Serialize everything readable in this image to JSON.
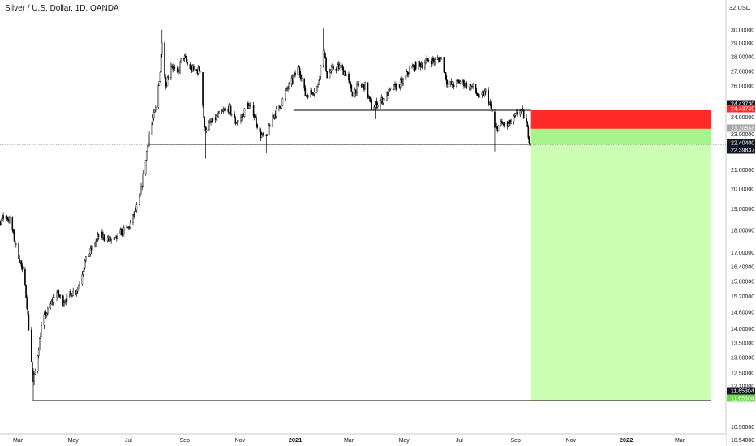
{
  "header": {
    "title": "Silver / U.S. Dollar, 1D, OANDA",
    "currency": "USD",
    "top_value": "32"
  },
  "colors": {
    "stop_zone": "#ff2a2a",
    "target_zone": "#ccffb3",
    "target_zone_top": "#a6f58c",
    "candle": "#000000",
    "tag_dark": "#131722",
    "tag_red": "#ff2a2a",
    "tag_green": "#6cd94a",
    "tag_gray": "#a9a9a9"
  },
  "chart_data": {
    "type": "candlestick",
    "symbol": "XAG/USD",
    "interval": "1D",
    "y_axis": {
      "scale": "log",
      "ylim": [
        10.4,
        32
      ],
      "ticks": [
        "30.00000",
        "29.00000",
        "28.00000",
        "27.00000",
        "26.00000",
        "24.00000",
        "23.00000",
        "21.00000",
        "20.00000",
        "19.00000",
        "18.00000",
        "17.00000",
        "16.40000",
        "15.80000",
        "15.20000",
        "14.60000",
        "14.00000",
        "13.50000",
        "13.00000",
        "12.50000",
        "12.10000",
        "11.70000",
        "10.90000",
        "10.54000"
      ]
    },
    "x_axis": {
      "ticks": [
        {
          "label": "Mar",
          "x": "2020-03-01",
          "year": false
        },
        {
          "label": "May",
          "x": "2020-05-01",
          "year": false
        },
        {
          "label": "Jul",
          "x": "2020-07-01",
          "year": false
        },
        {
          "label": "Sep",
          "x": "2020-09-01",
          "year": false
        },
        {
          "label": "Nov",
          "x": "2020-11-01",
          "year": false
        },
        {
          "label": "2021",
          "x": "2021-01-01",
          "year": true
        },
        {
          "label": "Mar",
          "x": "2021-03-01",
          "year": false
        },
        {
          "label": "May",
          "x": "2021-05-01",
          "year": false
        },
        {
          "label": "Jul",
          "x": "2021-07-01",
          "year": false
        },
        {
          "label": "Sep",
          "x": "2021-09-01",
          "year": false
        },
        {
          "label": "Nov",
          "x": "2021-11-01",
          "year": false
        },
        {
          "label": "2022",
          "x": "2022-01-01",
          "year": true
        },
        {
          "label": "Mar",
          "x": "2022-03-01",
          "year": false
        }
      ]
    },
    "price_path": [
      [
        "2020-01-22",
        17.8
      ],
      [
        "2020-02-01",
        17.9
      ],
      [
        "2020-02-10",
        18.4
      ],
      [
        "2020-02-16",
        18.7
      ],
      [
        "2020-02-22",
        18.4
      ],
      [
        "2020-02-27",
        17.4
      ],
      [
        "2020-03-04",
        16.6
      ],
      [
        "2020-03-10",
        15.3
      ],
      [
        "2020-03-14",
        13.6
      ],
      [
        "2020-03-18",
        12.2
      ],
      [
        "2020-03-22",
        12.9
      ],
      [
        "2020-03-28",
        14.3
      ],
      [
        "2020-04-04",
        14.7
      ],
      [
        "2020-04-12",
        15.4
      ],
      [
        "2020-04-20",
        15.0
      ],
      [
        "2020-04-28",
        15.3
      ],
      [
        "2020-05-06",
        15.5
      ],
      [
        "2020-05-14",
        16.6
      ],
      [
        "2020-05-22",
        17.2
      ],
      [
        "2020-05-30",
        17.8
      ],
      [
        "2020-06-07",
        17.6
      ],
      [
        "2020-06-15",
        17.5
      ],
      [
        "2020-06-23",
        17.9
      ],
      [
        "2020-07-01",
        18.1
      ],
      [
        "2020-07-08",
        18.8
      ],
      [
        "2020-07-14",
        19.6
      ],
      [
        "2020-07-21",
        22.0
      ],
      [
        "2020-07-25",
        23.3
      ],
      [
        "2020-07-31",
        24.5
      ],
      [
        "2020-08-05",
        27.0
      ],
      [
        "2020-08-07",
        29.3
      ],
      [
        "2020-08-11",
        26.0
      ],
      [
        "2020-08-17",
        27.5
      ],
      [
        "2020-08-24",
        26.7
      ],
      [
        "2020-08-30",
        28.2
      ],
      [
        "2020-09-05",
        27.3
      ],
      [
        "2020-09-13",
        27.0
      ],
      [
        "2020-09-18",
        27.1
      ],
      [
        "2020-09-23",
        23.3
      ],
      [
        "2020-09-29",
        23.6
      ],
      [
        "2020-10-06",
        24.0
      ],
      [
        "2020-10-13",
        24.3
      ],
      [
        "2020-10-20",
        24.6
      ],
      [
        "2020-10-27",
        23.7
      ],
      [
        "2020-11-03",
        24.0
      ],
      [
        "2020-11-09",
        24.8
      ],
      [
        "2020-11-16",
        24.3
      ],
      [
        "2020-11-23",
        23.0
      ],
      [
        "2020-11-30",
        22.7
      ],
      [
        "2020-12-07",
        24.1
      ],
      [
        "2020-12-15",
        24.6
      ],
      [
        "2020-12-21",
        25.6
      ],
      [
        "2020-12-28",
        26.3
      ],
      [
        "2021-01-05",
        27.3
      ],
      [
        "2021-01-12",
        25.4
      ],
      [
        "2021-01-19",
        25.6
      ],
      [
        "2021-01-26",
        26.0
      ],
      [
        "2021-02-01",
        28.7
      ],
      [
        "2021-02-05",
        26.7
      ],
      [
        "2021-02-12",
        27.2
      ],
      [
        "2021-02-19",
        27.3
      ],
      [
        "2021-02-26",
        26.8
      ],
      [
        "2021-03-05",
        25.5
      ],
      [
        "2021-03-12",
        26.0
      ],
      [
        "2021-03-19",
        26.0
      ],
      [
        "2021-03-26",
        24.6
      ],
      [
        "2021-04-02",
        24.9
      ],
      [
        "2021-04-09",
        25.2
      ],
      [
        "2021-04-16",
        25.7
      ],
      [
        "2021-04-23",
        26.0
      ],
      [
        "2021-04-30",
        26.3
      ],
      [
        "2021-05-07",
        27.1
      ],
      [
        "2021-05-14",
        27.4
      ],
      [
        "2021-05-21",
        27.5
      ],
      [
        "2021-05-28",
        27.8
      ],
      [
        "2021-06-04",
        27.7
      ],
      [
        "2021-06-11",
        27.9
      ],
      [
        "2021-06-18",
        26.1
      ],
      [
        "2021-06-25",
        26.1
      ],
      [
        "2021-07-02",
        26.3
      ],
      [
        "2021-07-09",
        26.1
      ],
      [
        "2021-07-16",
        25.9
      ],
      [
        "2021-07-23",
        25.2
      ],
      [
        "2021-07-30",
        25.6
      ],
      [
        "2021-08-06",
        24.3
      ],
      [
        "2021-08-09",
        23.3
      ],
      [
        "2021-08-16",
        23.6
      ],
      [
        "2021-08-23",
        23.5
      ],
      [
        "2021-08-30",
        23.9
      ],
      [
        "2021-09-06",
        24.5
      ],
      [
        "2021-09-12",
        23.9
      ],
      [
        "2021-09-17",
        22.4
      ]
    ],
    "trade_setup": {
      "type": "short position",
      "entry": 23.30588,
      "stop_loss": 24.4373,
      "take_profit": 11.65304,
      "start": "2021-09-18",
      "end": "2022-04-05"
    },
    "levels": [
      {
        "price": 24.4373,
        "from": "2020-12-30",
        "to": "2021-09-18"
      },
      {
        "price": 22.404,
        "from": "2020-07-23",
        "to": "2021-09-18",
        "note": "support line"
      },
      {
        "price": 11.65304,
        "from": "2020-03-18",
        "to": "2022-04-05"
      }
    ],
    "price_tags": [
      {
        "value": "24.43730",
        "bg": "tag_dark",
        "fg": "#ffffff"
      },
      {
        "value": "24.43730",
        "bg": "tag_red",
        "fg": "#ffffff"
      },
      {
        "value": "23.30588",
        "bg": "tag_gray",
        "fg": "#ffffff"
      },
      {
        "value": "22.40400",
        "bg": "tag_dark",
        "fg": "#ffffff"
      },
      {
        "value": "22.39837",
        "bg": "tag_dark",
        "fg": "#ffffff"
      },
      {
        "value": "11.65304",
        "bg": "tag_dark",
        "fg": "#ffffff"
      },
      {
        "value": "11.65304",
        "bg": "tag_green",
        "fg": "#ffffff"
      }
    ],
    "last_price": 22.39837
  }
}
